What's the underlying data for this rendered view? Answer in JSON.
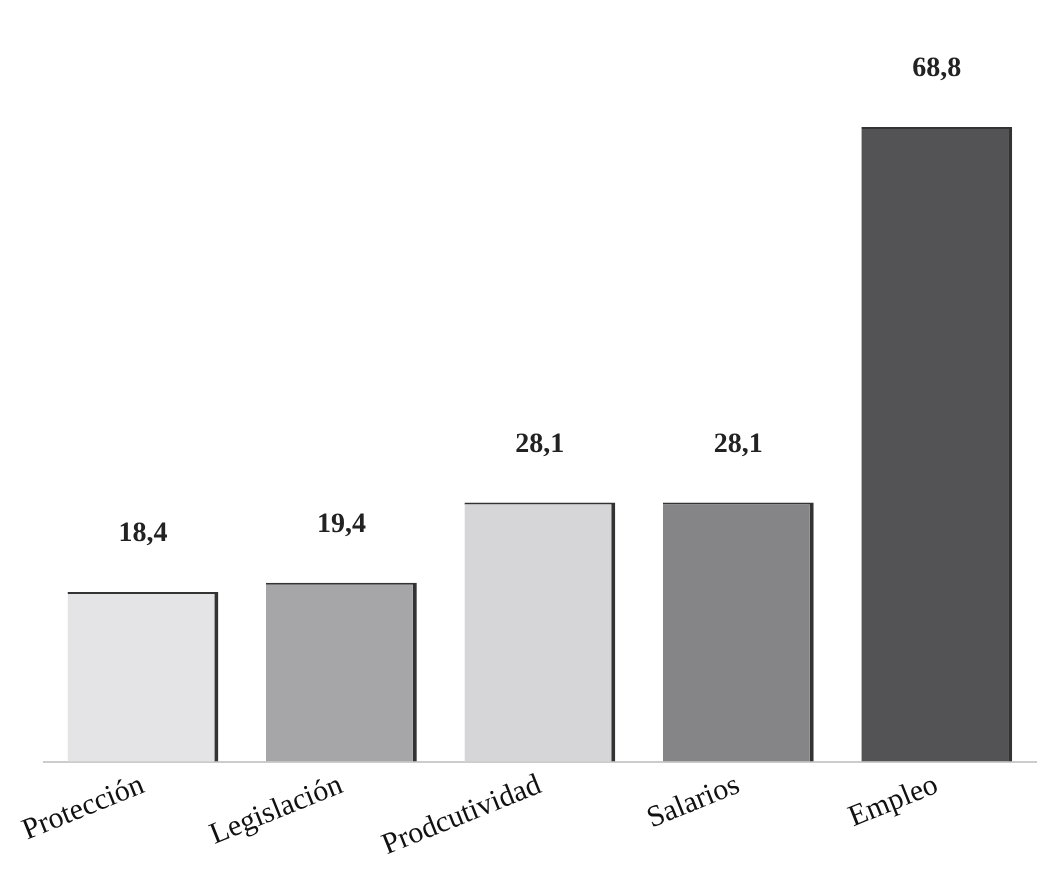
{
  "chart_data": {
    "type": "bar",
    "categories": [
      "Protección",
      "Legislación",
      "Prodcutividad",
      "Salarios",
      "Empleo"
    ],
    "values": [
      18.4,
      19.4,
      28.1,
      28.1,
      68.8
    ],
    "colors": [
      "#e4e4e6",
      "#a6a6a8",
      "#d6d6d8",
      "#858587",
      "#535356"
    ],
    "value_labels": [
      "18,4",
      "19,4",
      "28,1",
      "28,1",
      "68,8"
    ],
    "tick_labels": "x",
    "grid": false,
    "legend": false
  }
}
